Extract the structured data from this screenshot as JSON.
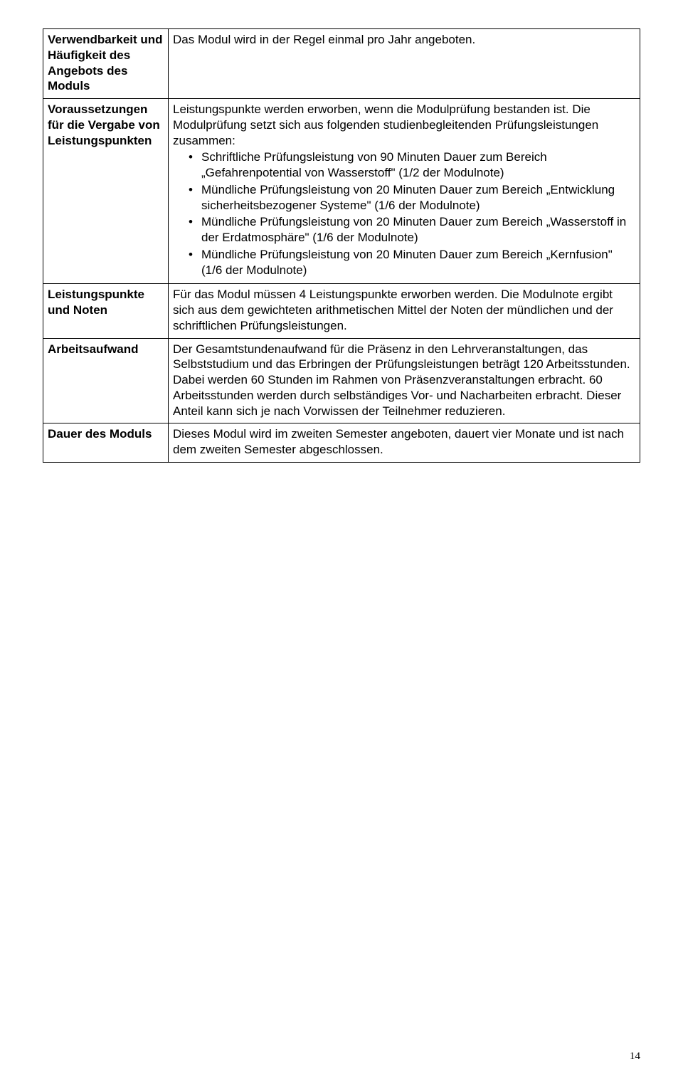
{
  "rows": {
    "verwendbarkeit": {
      "label": "Verwendbarkeit und Häufigkeit des Angebots des Moduls",
      "text": "Das Modul wird in der Regel einmal pro Jahr angeboten."
    },
    "voraussetzungen": {
      "label": "Voraussetzungen für die Vergabe von Leistungspunkten",
      "intro": "Leistungspunkte werden erworben, wenn die Modulprüfung bestanden ist. Die Modulprüfung setzt sich aus folgenden studienbegleitenden Prüfungsleistungen zusammen:",
      "bullets": [
        "Schriftliche Prüfungsleistung von 90 Minuten Dauer zum Bereich „Gefahrenpotential von Wasserstoff\" (1/2 der Modulnote)",
        "Mündliche Prüfungsleistung von 20 Minuten Dauer zum Bereich „Entwicklung sicherheitsbezogener Systeme\" (1/6 der Modulnote)",
        "Mündliche Prüfungsleistung von 20 Minuten Dauer zum Bereich „Wasserstoff in der Erdatmosphäre\" (1/6 der Modulnote)",
        "Mündliche Prüfungsleistung von 20 Minuten Dauer zum Bereich „Kernfusion\" (1/6 der Modulnote)"
      ]
    },
    "leistungspunkte": {
      "label": "Leistungspunkte und Noten",
      "text": "Für das Modul müssen 4 Leistungspunkte erworben werden. Die Modulnote ergibt sich aus dem gewichteten arithmetischen Mittel der Noten der mündlichen und der schriftlichen Prüfungsleistungen."
    },
    "arbeitsaufwand": {
      "label": "Arbeitsaufwand",
      "text": "Der Gesamtstundenaufwand für die Präsenz in den Lehrveranstaltungen, das Selbststudium und das Erbringen der Prüfungsleistungen beträgt 120 Arbeitsstunden. Dabei werden 60 Stunden im Rahmen von Präsenzveranstaltungen erbracht. 60 Arbeitsstunden werden durch selbständiges Vor- und Nacharbeiten erbracht. Dieser Anteil kann sich je nach Vorwissen der Teilnehmer reduzieren."
    },
    "dauer": {
      "label": "Dauer des Moduls",
      "text": "Dieses Modul wird im zweiten Semester angeboten, dauert vier Monate und ist nach dem zweiten Semester abgeschlossen."
    }
  },
  "page_number": "14"
}
